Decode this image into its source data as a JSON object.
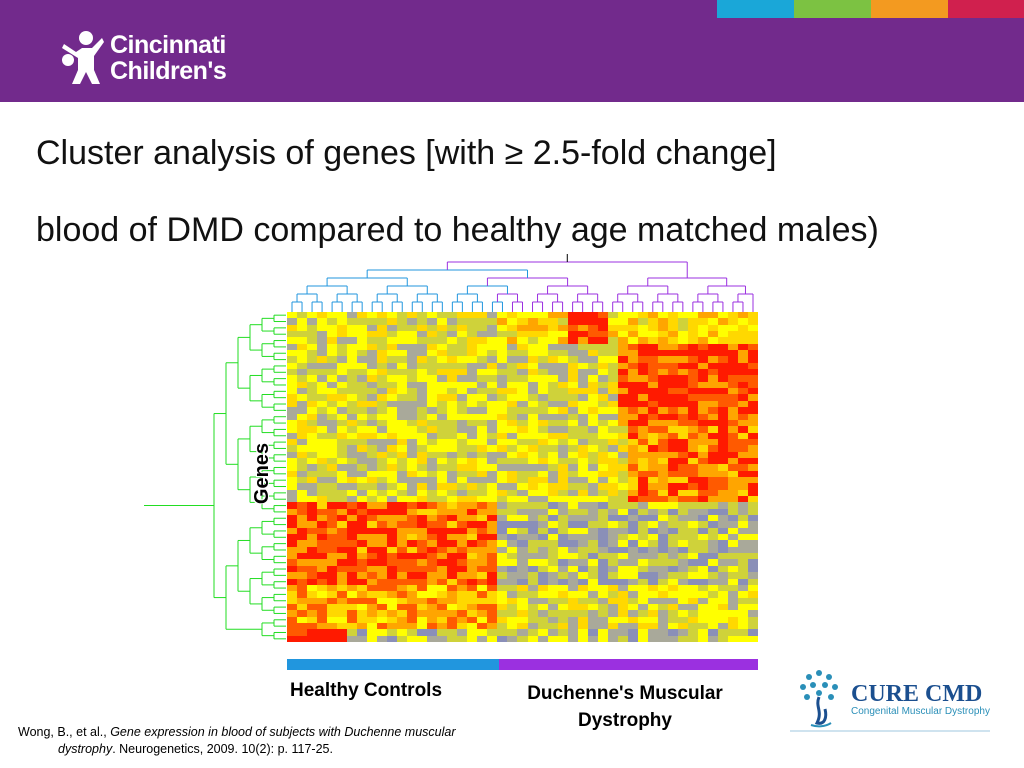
{
  "banner": {
    "color": "#722a8c",
    "strips": [
      "#1aa7d8",
      "#7cc242",
      "#f39a20",
      "#d0204e"
    ]
  },
  "logo": {
    "line1": "Cincinnati",
    "line2": "Children's"
  },
  "slide": {
    "title": "Cluster analysis of genes [with ≥ 2.5-fold change]",
    "body": "blood of DMD compared to healthy age matched males)"
  },
  "heatmap": {
    "y_label": "Genes",
    "groups": [
      {
        "label": "Healthy Controls",
        "color": "#2196de"
      },
      {
        "label": "Duchenne's Muscular Dystrophy",
        "color": "#9b30e0"
      }
    ],
    "palette": [
      "#3a3fa6",
      "#8a8fb8",
      "#a9a99a",
      "#cfd23a",
      "#ffff00",
      "#ffd800",
      "#ffa500",
      "#ff5a00",
      "#ff1a00"
    ]
  },
  "citation": {
    "authors": "Wong, B., et al., ",
    "title_part1": "Gene expression in blood of subjects with Duchenne muscular",
    "title_part2": "dystrophy",
    "rest": ". Neurogenetics, 2009. 10(2): p. 117-25."
  },
  "cure": {
    "title": "CURE CMD",
    "subtitle": "Congenital Muscular Dystrophy"
  }
}
